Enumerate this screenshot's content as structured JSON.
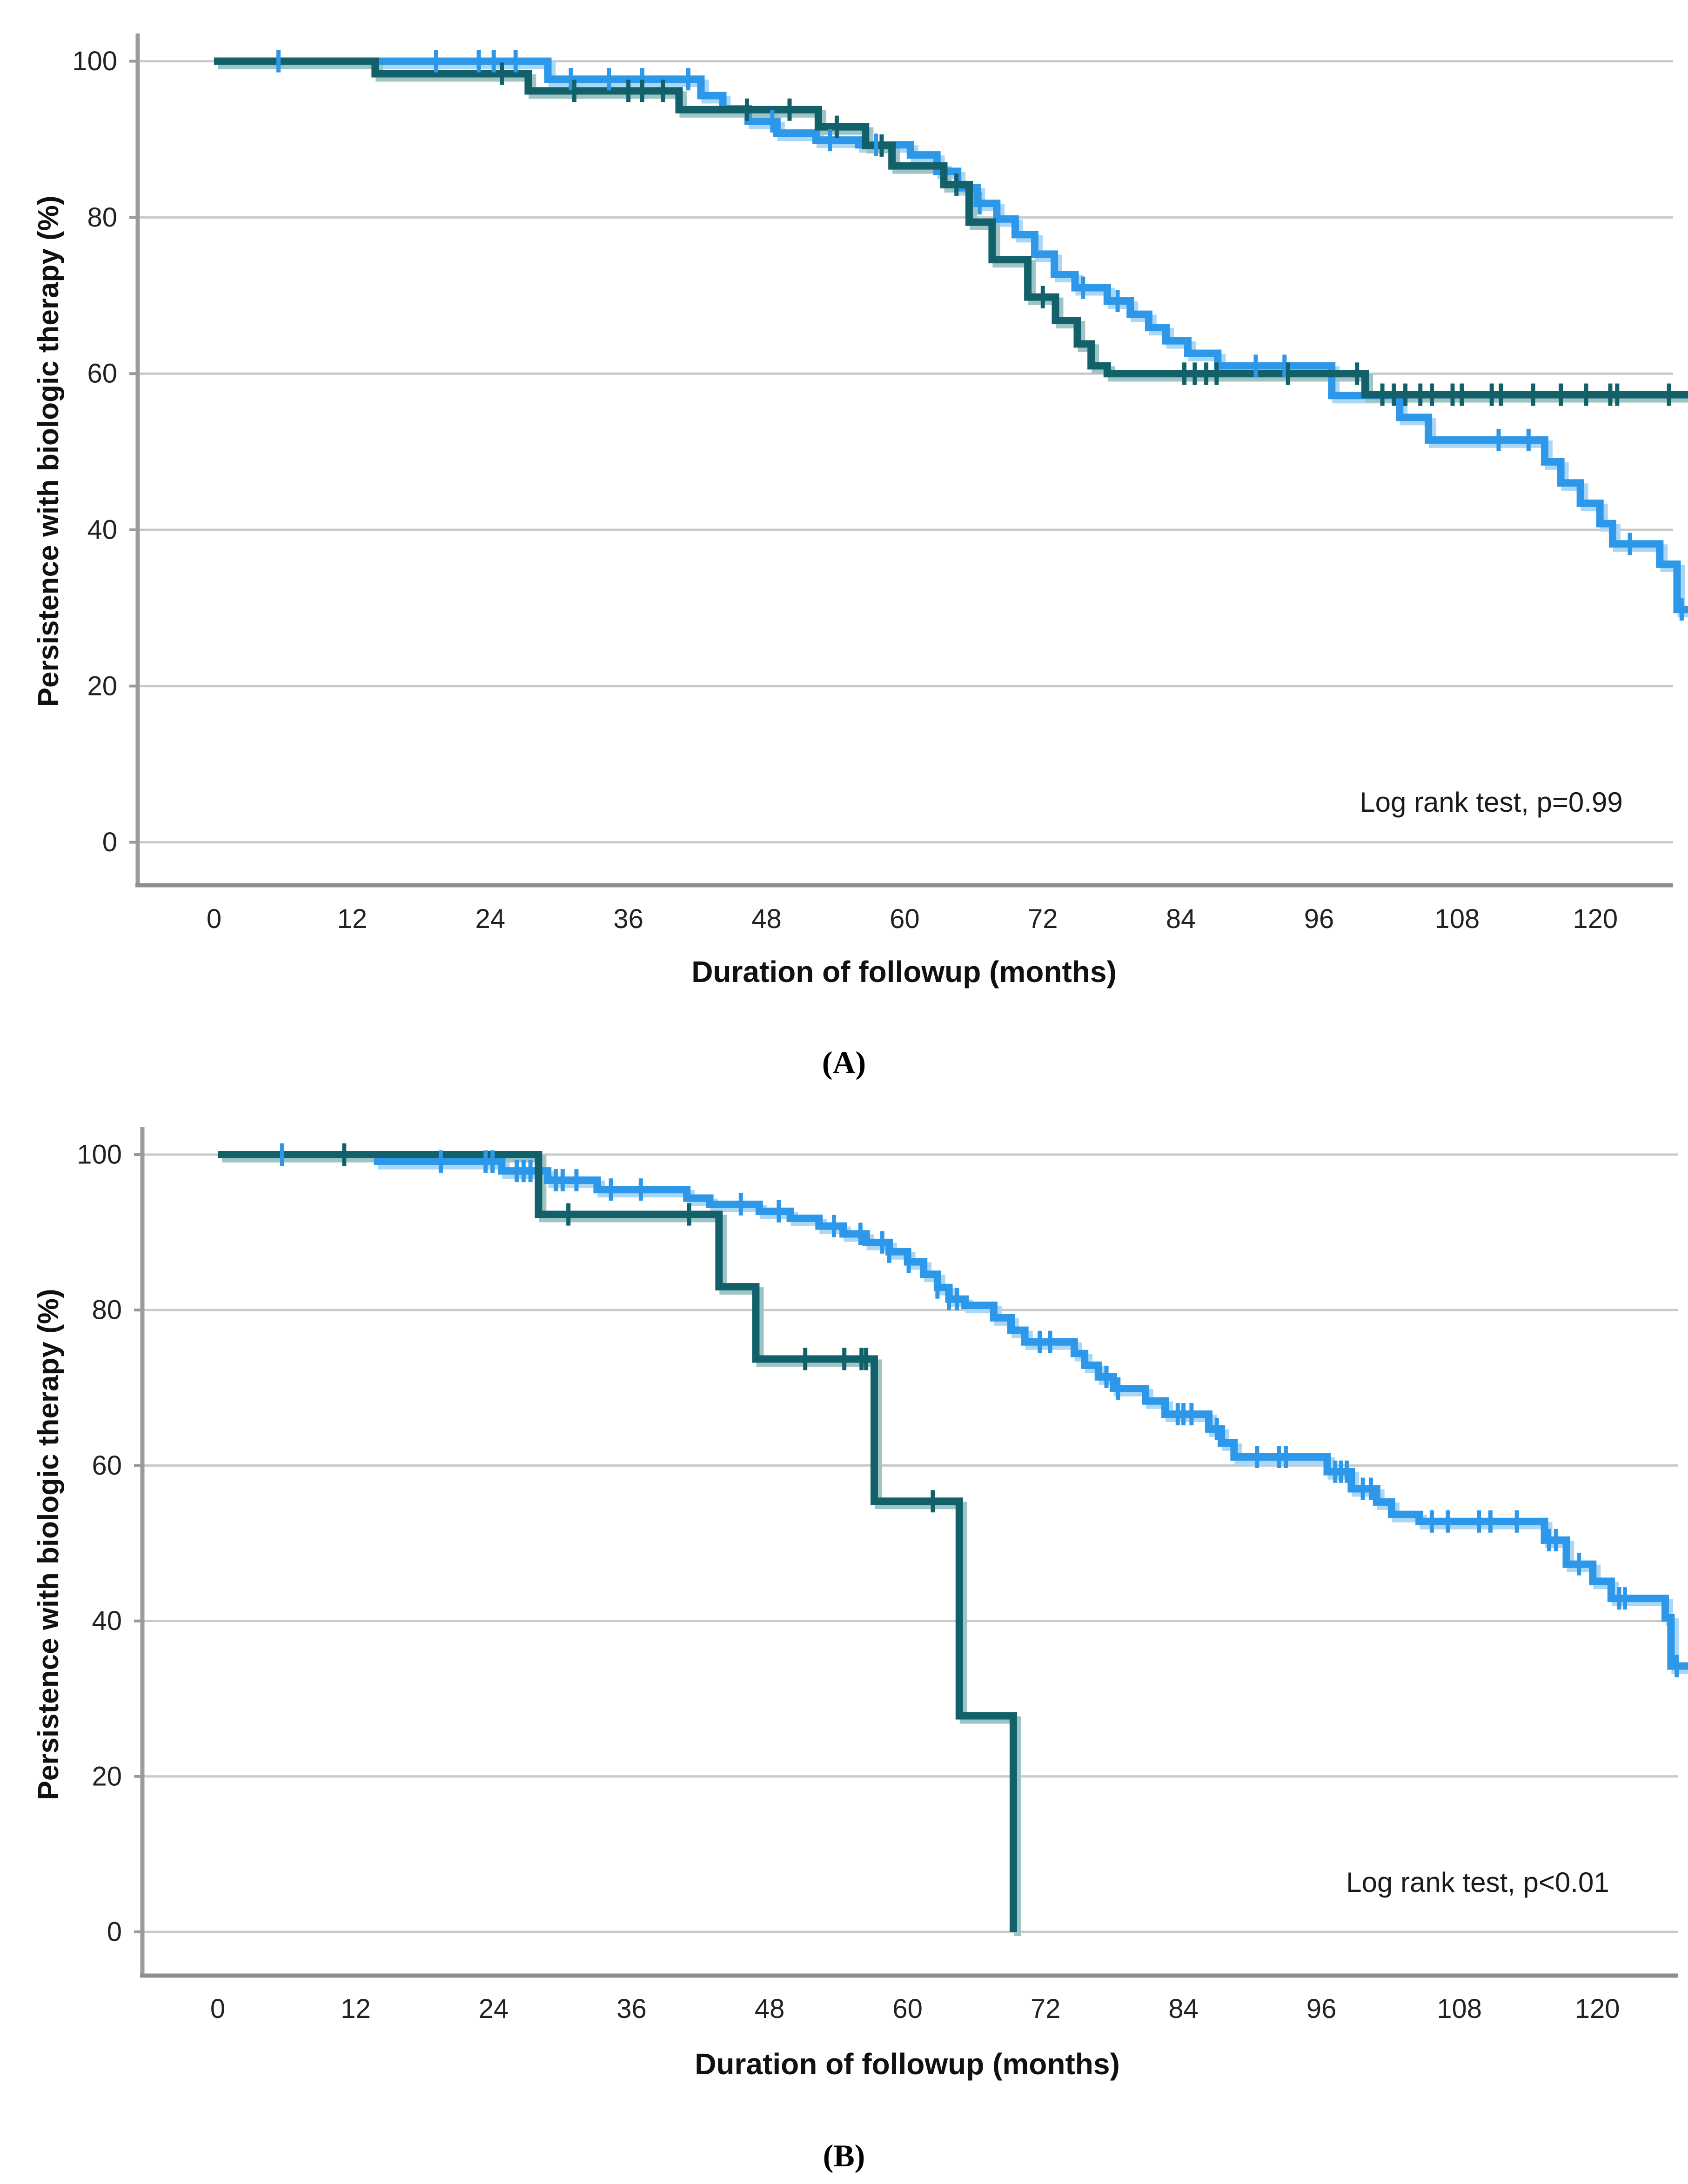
{
  "figure": {
    "panels": [
      {
        "id": "A",
        "caption": "(A)",
        "y_axis_label": "Persistence with biologic therapy (%)",
        "x_axis_label": "Duration of followup (months)",
        "annotation": "Log rank test, p=0.99"
      },
      {
        "id": "B",
        "caption": "(B)",
        "y_axis_label": "Persistence with biologic therapy (%)",
        "x_axis_label": "Duration of followup (months)",
        "annotation": "Log rank test, p<0.01"
      }
    ]
  },
  "chart_data": [
    {
      "type": "line",
      "subtype": "kaplan-meier-step",
      "panel": "A",
      "title": "",
      "xlabel": "Duration of followup (months)",
      "ylabel": "Persistence with biologic therapy (%)",
      "annotation": "Log rank test, p=0.99",
      "xlim": [
        0,
        128
      ],
      "ylim": [
        0,
        105
      ],
      "x_ticks": [
        0,
        12,
        24,
        36,
        48,
        60,
        72,
        84,
        96,
        108,
        120
      ],
      "y_ticks": [
        0,
        20,
        40,
        60,
        80,
        100
      ],
      "grid": "horizontal",
      "legend": "none",
      "grid_color": "#c9c9c9",
      "axis_color": "#999999",
      "tick_label_color": "#222222",
      "series": [
        {
          "name": "group-1-light-blue",
          "color": "#2d97e9",
          "halo": "#abd7f6",
          "steps": [
            [
              0,
              100
            ],
            [
              29,
              97.7
            ],
            [
              42.3,
              95.6
            ],
            [
              44.2,
              93.9
            ],
            [
              46.4,
              92.3
            ],
            [
              48.9,
              90.8
            ],
            [
              52.3,
              89.9
            ],
            [
              56,
              89.3
            ],
            [
              60.5,
              88
            ],
            [
              62.8,
              85.9
            ],
            [
              64.6,
              83.8
            ],
            [
              66.3,
              81.8
            ],
            [
              68,
              79.8
            ],
            [
              69.6,
              77.8
            ],
            [
              71.3,
              75.3
            ],
            [
              73,
              72.7
            ],
            [
              74.8,
              71
            ],
            [
              77.6,
              69.3
            ],
            [
              79.6,
              67.6
            ],
            [
              81.2,
              65.9
            ],
            [
              82.7,
              64.2
            ],
            [
              84.6,
              62.6
            ],
            [
              87.2,
              61
            ],
            [
              97.1,
              57.2
            ],
            [
              103,
              54.4
            ],
            [
              105.5,
              51.5
            ],
            [
              115.6,
              48.7
            ],
            [
              117,
              46
            ],
            [
              118.7,
              43.4
            ],
            [
              120.4,
              40.8
            ],
            [
              121.5,
              38.2
            ],
            [
              125.6,
              35.6
            ],
            [
              127.1,
              29.8
            ],
            [
              128.2,
              29.8
            ]
          ],
          "censors": [
            5.6,
            19.3,
            23,
            24.3,
            26.2,
            31,
            34.3,
            37.2,
            41.2,
            48.5,
            53.5,
            57.5,
            66.5,
            75.5,
            78.5,
            90.5,
            93,
            111.6,
            114.2,
            123,
            127.5
          ]
        },
        {
          "name": "group-2-dark-teal",
          "color": "#12616a",
          "halo": "#9fc4c4",
          "steps": [
            [
              0,
              100
            ],
            [
              14,
              98.4
            ],
            [
              27.3,
              96.2
            ],
            [
              40.4,
              93.8
            ],
            [
              52.5,
              91.6
            ],
            [
              56.6,
              89.2
            ],
            [
              58.9,
              86.6
            ],
            [
              63.4,
              84.2
            ],
            [
              65.6,
              79.4
            ],
            [
              67.6,
              74.6
            ],
            [
              70.7,
              69.8
            ],
            [
              73.1,
              66.8
            ],
            [
              75,
              63.8
            ],
            [
              76.2,
              61
            ],
            [
              77.6,
              60
            ],
            [
              100,
              57.3
            ],
            [
              128.2,
              57.3
            ]
          ],
          "censors": [
            25,
            31.3,
            36,
            37.2,
            39,
            46.3,
            50,
            54.1,
            58,
            64.5,
            72,
            84.3,
            85.2,
            86.2,
            87.1,
            93.3,
            99.3,
            101.5,
            102.5,
            103.5,
            104.8,
            105.8,
            107.6,
            108.4,
            111,
            111.8,
            114.6,
            117,
            119.2,
            121.3,
            121.9,
            126.4
          ]
        }
      ]
    },
    {
      "type": "line",
      "subtype": "kaplan-meier-step",
      "panel": "B",
      "title": "",
      "xlabel": "Duration of followup (months)",
      "ylabel": "Persistence with biologic therapy (%)",
      "annotation": "Log rank test, p<0.01",
      "xlim": [
        0,
        128
      ],
      "ylim": [
        0,
        105
      ],
      "x_ticks": [
        0,
        12,
        24,
        36,
        48,
        60,
        72,
        84,
        96,
        108,
        120
      ],
      "y_ticks": [
        0,
        20,
        40,
        60,
        80,
        100
      ],
      "grid": "horizontal",
      "legend": "none",
      "grid_color": "#c9c9c9",
      "axis_color": "#999999",
      "tick_label_color": "#222222",
      "series": [
        {
          "name": "group-1-light-blue",
          "color": "#2d97e9",
          "halo": "#abd7f6",
          "steps": [
            [
              0,
              100
            ],
            [
              13.9,
              99.1
            ],
            [
              24.7,
              97.9
            ],
            [
              28.7,
              96.7
            ],
            [
              33,
              95.5
            ],
            [
              40.8,
              94.4
            ],
            [
              42.8,
              93.6
            ],
            [
              47.1,
              92.7
            ],
            [
              49.8,
              91.8
            ],
            [
              52.3,
              90.8
            ],
            [
              54.4,
              89.8
            ],
            [
              56.4,
              88.7
            ],
            [
              58.4,
              87.5
            ],
            [
              60,
              86.2
            ],
            [
              61.4,
              84.6
            ],
            [
              62.6,
              82.9
            ],
            [
              63.6,
              81.4
            ],
            [
              65,
              80.6
            ],
            [
              67.5,
              79
            ],
            [
              69,
              77.4
            ],
            [
              70.2,
              75.9
            ],
            [
              74.5,
              74.4
            ],
            [
              75.4,
              72.9
            ],
            [
              76.6,
              71.4
            ],
            [
              77.9,
              69.9
            ],
            [
              80.7,
              68.3
            ],
            [
              82.4,
              66.6
            ],
            [
              86.2,
              64.7
            ],
            [
              87.3,
              62.9
            ],
            [
              88.4,
              61.1
            ],
            [
              96.5,
              59.2
            ],
            [
              98.6,
              57
            ],
            [
              100.8,
              55.3
            ],
            [
              102.1,
              53.7
            ],
            [
              104.5,
              52.8
            ],
            [
              115.4,
              50.4
            ],
            [
              117.3,
              47.3
            ],
            [
              119.6,
              45.1
            ],
            [
              121.2,
              42.9
            ],
            [
              125.9,
              40.4
            ],
            [
              126.4,
              34.2
            ],
            [
              127.9,
              34.2
            ]
          ],
          "censors": [
            5.6,
            19.4,
            23.3,
            23.9,
            26,
            26.6,
            27.2,
            29.4,
            30,
            31.2,
            34.2,
            36.8,
            45.5,
            48.8,
            53.6,
            55.9,
            57.8,
            58.4,
            60.1,
            62.6,
            63.6,
            64.3,
            71.5,
            72.4,
            77.3,
            78.3,
            83.5,
            84,
            84.7,
            86.9,
            90.4,
            92.3,
            92.9,
            97.2,
            97.7,
            98.2,
            99.6,
            100.3,
            105.6,
            107,
            109.7,
            110.7,
            113,
            115.8,
            116.4,
            118.4,
            121.9,
            122.4,
            126.9
          ]
        },
        {
          "name": "group-2-dark-teal",
          "color": "#12616a",
          "halo": "#9fc4c4",
          "steps": [
            [
              0,
              100
            ],
            [
              27.9,
              92.3
            ],
            [
              43.6,
              83
            ],
            [
              46.8,
              73.7
            ],
            [
              57.1,
              55.4
            ],
            [
              64.5,
              27.8
            ],
            [
              69.2,
              0
            ]
          ],
          "censors": [
            11,
            30.5,
            41,
            51.1,
            54.5,
            56,
            56.4,
            62.2
          ]
        }
      ]
    }
  ]
}
